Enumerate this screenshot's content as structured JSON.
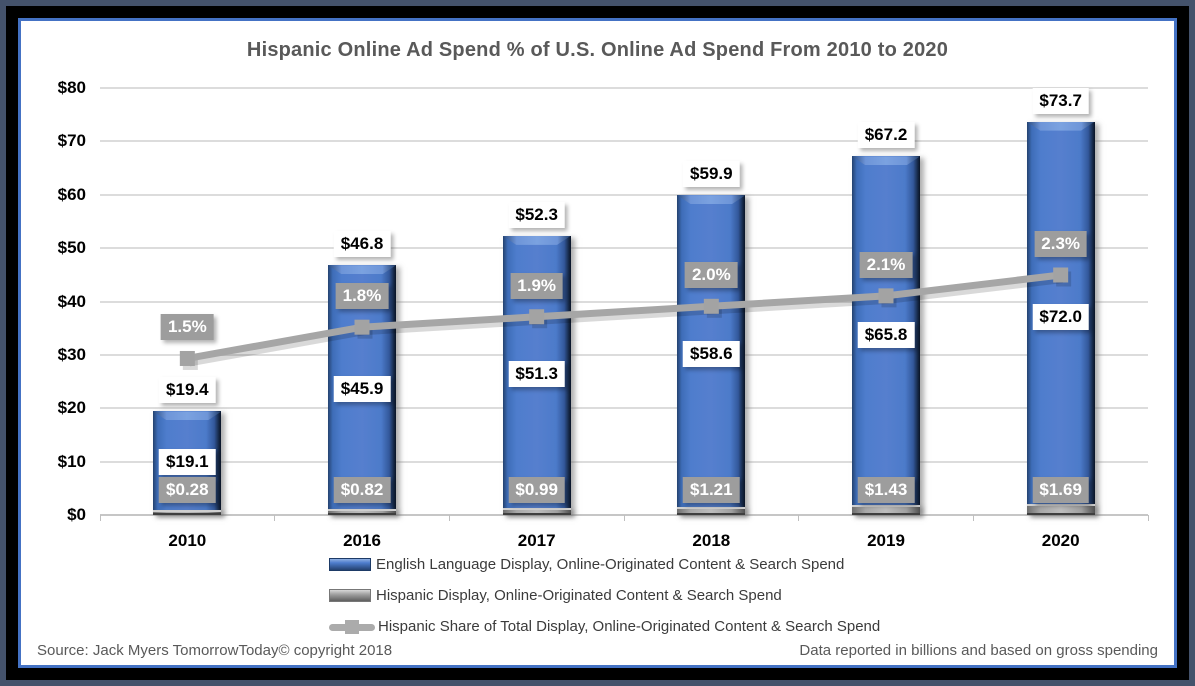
{
  "title": "Hispanic Online Ad Spend % of U.S. Online Ad Spend From 2010 to 2020",
  "footer": {
    "source": "Source: Jack Myers TomorrowToday© copyright 2018",
    "note": "Data reported in billions and based on gross spending"
  },
  "colors": {
    "frame_outer": "#44526B",
    "frame_black": "#000000",
    "frame_accent_blue": "#4472C4",
    "bar_blue": "#4E7DCD",
    "series_gray": "#A6A6A6",
    "marker_gray": "#A3A3A3",
    "label_gray_bg": "#9D9D9D",
    "title_text": "#595959",
    "gridline": "#DCDCDC"
  },
  "chart_data": {
    "type": "bar",
    "subtype": "stacked-bar-with-line-combo",
    "categories": [
      "2010",
      "2016",
      "2017",
      "2018",
      "2019",
      "2020"
    ],
    "series": [
      {
        "name": "English Language Display, Online-Originated Content & Search Spend",
        "type": "bar",
        "color": "#4E7DCD",
        "values": [
          19.1,
          45.9,
          51.3,
          58.6,
          65.8,
          72.0
        ],
        "data_labels": [
          "$19.1",
          "$45.9",
          "$51.3",
          "$58.6",
          "$65.8",
          "$72.0"
        ]
      },
      {
        "name": "Hispanic Display, Online-Originated Content & Search Spend",
        "type": "bar",
        "color": "#A6A6A6",
        "values": [
          0.28,
          0.82,
          0.99,
          1.21,
          1.43,
          1.69
        ],
        "data_labels": [
          "$0.28",
          "$0.82",
          "$0.99",
          "$1.21",
          "$1.43",
          "$1.69"
        ]
      },
      {
        "name": "Hispanic Share of Total Display, Online-Originated Content & Search Spend",
        "type": "line",
        "color": "#A6A6A6",
        "values_percent": [
          1.5,
          1.8,
          1.9,
          2.0,
          2.1,
          2.3
        ],
        "data_labels": [
          "1.5%",
          "1.8%",
          "1.9%",
          "2.0%",
          "2.1%",
          "2.3%"
        ]
      }
    ],
    "stack_totals": [
      19.4,
      46.8,
      52.3,
      59.9,
      67.2,
      73.7
    ],
    "stack_total_labels": [
      "$19.4",
      "$46.8",
      "$52.3",
      "$59.9",
      "$67.2",
      "$73.7"
    ],
    "title": "Hispanic Online Ad Spend % of U.S. Online Ad Spend From 2010 to 2020",
    "xlabel": "",
    "ylabel": "",
    "y_axis": {
      "min": 0,
      "max": 80,
      "ticks": [
        "$0",
        "$10",
        "$20",
        "$30",
        "$40",
        "$50",
        "$60",
        "$70",
        "$80"
      ]
    },
    "grid": true,
    "legend_position": "bottom",
    "units_note": "values in billions of US dollars"
  }
}
